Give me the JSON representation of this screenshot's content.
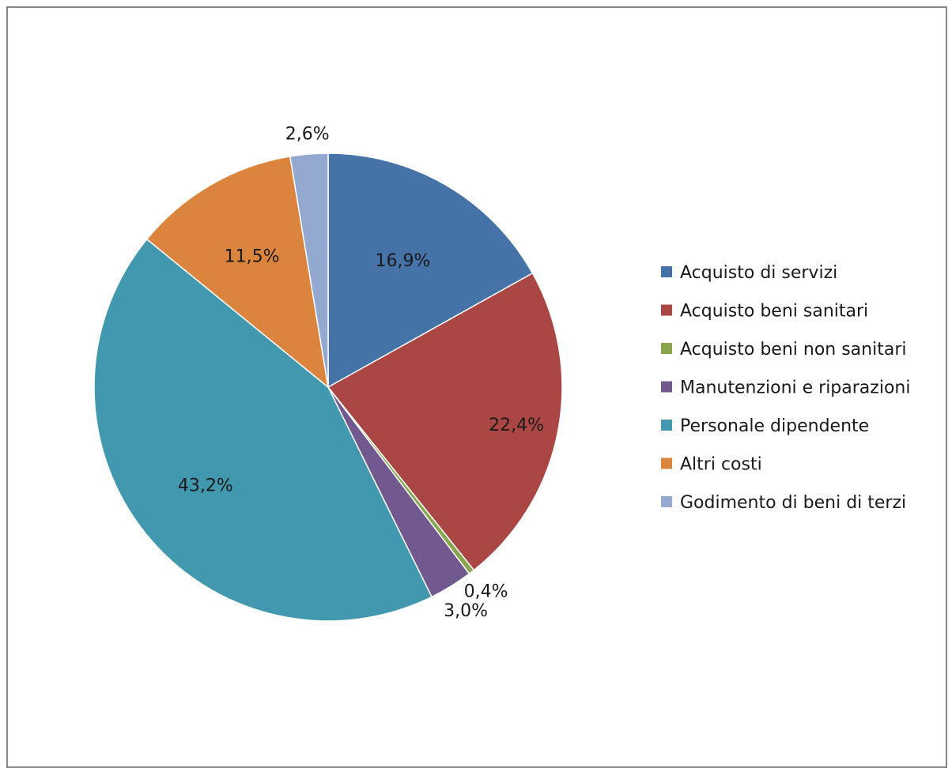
{
  "chart_data": {
    "type": "pie",
    "categories": [
      "Acquisto di servizi",
      "Acquisto beni sanitari",
      "Acquisto beni non sanitari",
      "Manutenzioni e riparazioni",
      "Personale dipendente",
      "Altri costi",
      "Godimento di beni di terzi"
    ],
    "values": [
      16.9,
      22.4,
      0.4,
      3.0,
      43.2,
      11.5,
      2.6
    ],
    "data_labels": [
      "16,9%",
      "22,4%",
      "0,4%",
      "3,0%",
      "43,2%",
      "11,5%",
      "2,6%"
    ],
    "colors": [
      "#4572A7",
      "#AA4643",
      "#89A54E",
      "#71588F",
      "#4198AF",
      "#DB843D",
      "#93A9CF"
    ],
    "start_angle": "12 o'clock",
    "direction": "clockwise",
    "legend_position": "right"
  }
}
